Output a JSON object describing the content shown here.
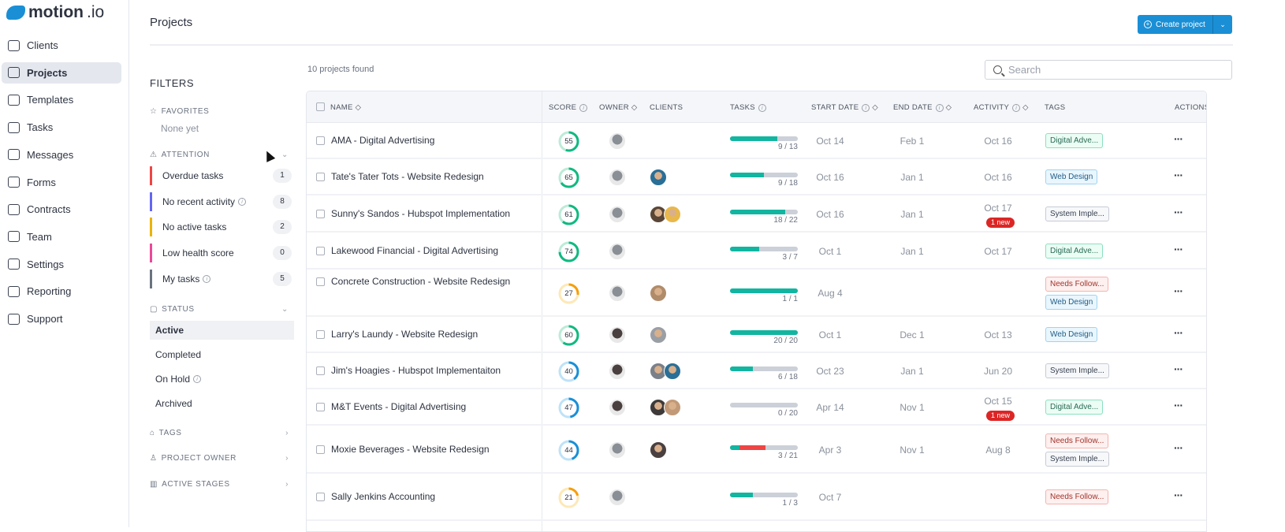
{
  "brand": {
    "name": "motion",
    "suffix": ".io",
    "color": "#1a8fd6"
  },
  "nav": [
    {
      "label": "Clients",
      "icon": "users-icon"
    },
    {
      "label": "Projects",
      "icon": "board-icon",
      "active": true
    },
    {
      "label": "Templates",
      "icon": "clipboard-icon"
    },
    {
      "label": "Tasks",
      "icon": "list-icon"
    },
    {
      "label": "Messages",
      "icon": "message-icon"
    },
    {
      "label": "Forms",
      "icon": "form-icon"
    },
    {
      "label": "Contracts",
      "icon": "contract-icon"
    },
    {
      "label": "Team",
      "icon": "team-icon"
    },
    {
      "label": "Settings",
      "icon": "gear-icon"
    },
    {
      "label": "Reporting",
      "icon": "report-icon"
    },
    {
      "label": "Support",
      "icon": "support-icon"
    }
  ],
  "header": {
    "title": "Projects",
    "create_label": "Create project",
    "search_placeholder": "Search",
    "found": "10 projects found"
  },
  "filters": {
    "title": "FILTERS",
    "favorites": "FAVORITES",
    "favorites_empty": "None yet",
    "attention": "ATTENTION",
    "attention_items": [
      {
        "label": "Overdue tasks",
        "count": "1",
        "color": "#ef4444"
      },
      {
        "label": "No recent activity",
        "count": "8",
        "color": "#6366f1",
        "info": true
      },
      {
        "label": "No active tasks",
        "count": "2",
        "color": "#eab308"
      },
      {
        "label": "Low health score",
        "count": "0",
        "color": "#ec4899"
      },
      {
        "label": "My tasks",
        "count": "5",
        "color": "#6b7280",
        "info": true
      }
    ],
    "status": "STATUS",
    "status_items": [
      {
        "label": "Active",
        "active": true
      },
      {
        "label": "Completed"
      },
      {
        "label": "On Hold",
        "info": true
      },
      {
        "label": "Archived"
      }
    ],
    "tags": "TAGS",
    "owner": "PROJECT OWNER",
    "stages": "ACTIVE STAGES"
  },
  "columns": {
    "name": "NAME",
    "score": "SCORE",
    "owner": "OWNER",
    "clients": "CLIENTS",
    "tasks": "TASKS",
    "start": "START DATE",
    "end": "END DATE",
    "activity": "ACTIVITY",
    "tags": "TAGS",
    "actions": "ACTIONS"
  },
  "projects": [
    {
      "name": "AMA - Digital Advertising",
      "score": 55,
      "owner": "#8a8f96",
      "clients": [],
      "done": 9,
      "total": 13,
      "overdue": 0,
      "start": "Oct 14",
      "end": "Feb 1",
      "activity": "Oct 16",
      "new": "",
      "tags": [
        [
          "Digital Adve...",
          "green"
        ]
      ]
    },
    {
      "name": "Tate's Tater Tots - Website Redesign",
      "score": 65,
      "owner": "#8a8f96",
      "clients": [
        "#2a6f97"
      ],
      "done": 9,
      "total": 18,
      "overdue": 0,
      "start": "Oct 16",
      "end": "Jan 1",
      "activity": "Oct 16",
      "new": "",
      "tags": [
        [
          "Web Design",
          "blue"
        ]
      ]
    },
    {
      "name": "Sunny's Sandos - Hubspot Implementation",
      "score": 61,
      "owner": "#8a8f96",
      "clients": [
        "#5a4636",
        "#e8b84a"
      ],
      "done": 18,
      "total": 22,
      "overdue": 0,
      "start": "Oct 16",
      "end": "Jan 1",
      "activity": "Oct 17",
      "new": "1 new",
      "tags": [
        [
          "System Imple...",
          "grey"
        ]
      ]
    },
    {
      "name": "Lakewood Financial - Digital Advertising",
      "score": 74,
      "owner": "#8a8f96",
      "clients": [],
      "done": 3,
      "total": 7,
      "overdue": 0,
      "start": "Oct 1",
      "end": "Jan 1",
      "activity": "Oct 17",
      "new": "",
      "tags": [
        [
          "Digital Adve...",
          "green"
        ]
      ]
    },
    {
      "name": "Concrete Construction - Website Redesign",
      "score": 27,
      "owner": "#8a8f96",
      "clients": [
        "#b08b6a"
      ],
      "done": 1,
      "total": 1,
      "overdue": 0,
      "start": "Aug 4",
      "end": "",
      "activity": "",
      "new": "",
      "tags": [
        [
          "Needs Follow...",
          "red"
        ],
        [
          "Web Design",
          "blue"
        ]
      ]
    },
    {
      "name": "Larry's Laundy - Website Redesign",
      "score": 60,
      "owner": "#4a4040",
      "clients": [
        "#9a9fa6"
      ],
      "done": 20,
      "total": 20,
      "overdue": 0,
      "start": "Oct 1",
      "end": "Dec 1",
      "activity": "Oct 13",
      "new": "",
      "tags": [
        [
          "Web Design",
          "blue"
        ]
      ]
    },
    {
      "name": "Jim's Hoagies - Hubspot Implementaiton",
      "score": 40,
      "owner": "#4a4040",
      "clients": [
        "#7a8089",
        "#2a6f97"
      ],
      "done": 6,
      "total": 18,
      "overdue": 0,
      "start": "Oct 23",
      "end": "Jan 1",
      "activity": "Jun 20",
      "new": "",
      "tags": [
        [
          "System Imple...",
          "grey"
        ]
      ]
    },
    {
      "name": "M&T Events - Digital Advertising",
      "score": 47,
      "owner": "#4a4040",
      "clients": [
        "#3e3a3a",
        "#c29a78"
      ],
      "done": 0,
      "total": 20,
      "overdue": 0,
      "start": "Apr 14",
      "end": "Nov 1",
      "activity": "Oct 15",
      "new": "1 new",
      "tags": [
        [
          "Digital Adve...",
          "green"
        ]
      ]
    },
    {
      "name": "Moxie Beverages - Website Redesign",
      "score": 44,
      "owner": "#8a8f96",
      "clients": [
        "#4a4040"
      ],
      "done": 3,
      "total": 21,
      "overdue": 8,
      "start": "Apr 3",
      "end": "Nov 1",
      "activity": "Aug 8",
      "new": "",
      "tags": [
        [
          "Needs Follow...",
          "red"
        ],
        [
          "System Imple...",
          "grey"
        ]
      ]
    },
    {
      "name": "Sally Jenkins Accounting",
      "score": 21,
      "owner": "#8a8f96",
      "clients": [],
      "done": 1,
      "total": 3,
      "overdue": 0,
      "start": "Oct 7",
      "end": "",
      "activity": "",
      "new": "",
      "tags": [
        [
          "Needs Follow...",
          "red"
        ]
      ]
    }
  ]
}
